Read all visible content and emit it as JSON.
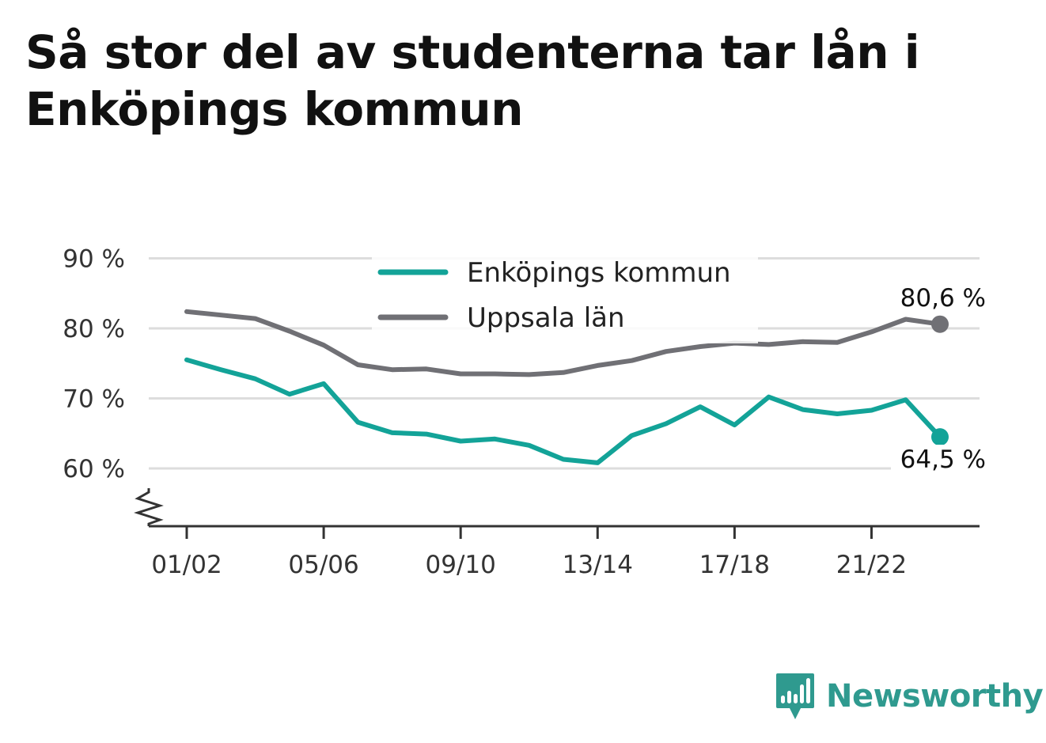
{
  "title": "Så stor del av studenterna tar lån i Enköpings kommun",
  "brand": {
    "name": "Newsworthy",
    "icon": "newsworthy-logo-icon"
  },
  "colors": {
    "series1": "#13a398",
    "series2": "#707075",
    "grid": "#dddddd",
    "axis": "#333333"
  },
  "chart_data": {
    "type": "line",
    "x": [
      "01/02",
      "02/03",
      "03/04",
      "04/05",
      "05/06",
      "06/07",
      "07/08",
      "08/09",
      "09/10",
      "10/11",
      "11/12",
      "12/13",
      "13/14",
      "14/15",
      "15/16",
      "16/17",
      "17/18",
      "18/19",
      "19/20",
      "20/21",
      "21/22",
      "22/23",
      "23/24"
    ],
    "x_tick_labels": [
      "01/02",
      "05/06",
      "09/10",
      "13/14",
      "17/18",
      "21/22"
    ],
    "y_ticks": [
      60,
      70,
      80,
      90
    ],
    "y_tick_labels": [
      "60 %",
      "70 %",
      "80 %",
      "90 %"
    ],
    "ylim": [
      52,
      90
    ],
    "y_axis_break": true,
    "grid": true,
    "legend_position": "top-center",
    "series": [
      {
        "name": "Enköpings kommun",
        "color": "#13a398",
        "values": [
          75.5,
          74.1,
          72.8,
          70.6,
          72.1,
          66.6,
          65.1,
          64.9,
          63.9,
          64.2,
          63.3,
          61.3,
          60.8,
          64.7,
          66.4,
          68.8,
          66.2,
          70.2,
          68.4,
          67.8,
          68.3,
          69.8,
          64.5
        ],
        "end_label": "64,5 %"
      },
      {
        "name": "Uppsala län",
        "color": "#707075",
        "values": [
          82.4,
          81.9,
          81.4,
          79.6,
          77.6,
          74.8,
          74.1,
          74.2,
          73.5,
          73.5,
          73.4,
          73.7,
          74.7,
          75.4,
          76.7,
          77.4,
          77.9,
          77.7,
          78.1,
          78.0,
          79.5,
          81.3,
          80.6
        ],
        "end_label": "80,6 %"
      }
    ]
  }
}
